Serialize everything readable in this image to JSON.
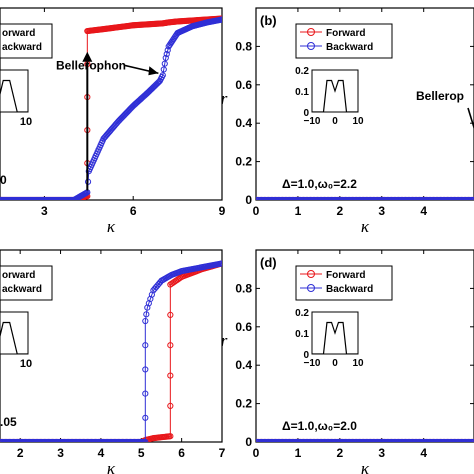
{
  "chart_data": [
    {
      "panel": "a",
      "type": "line",
      "xlabel": "κ",
      "ylabel": "",
      "panel_label": "",
      "xlim": [
        1.5,
        9
      ],
      "ylim": [
        0,
        1
      ],
      "x_ticks": [
        "3",
        "6",
        "9"
      ],
      "y_ticks": [],
      "series": [
        {
          "name": "Forward",
          "color": "#e8171b",
          "x": [
            1.5,
            2,
            3,
            4,
            4.45,
            4.45,
            5,
            5.5,
            6,
            6.5,
            7,
            7.2,
            7.5,
            8,
            8.5,
            9
          ],
          "y": [
            0,
            0,
            0,
            0,
            0.02,
            0.88,
            0.89,
            0.9,
            0.91,
            0.915,
            0.92,
            0.925,
            0.93,
            0.935,
            0.94,
            0.945
          ]
        },
        {
          "name": "Backward",
          "color": "#2f2fd6",
          "x": [
            1.5,
            2,
            3,
            4,
            4.45,
            4.5,
            5,
            5.5,
            6,
            6.5,
            6.9,
            7,
            7.1,
            7.2,
            7.5,
            8,
            8.5,
            9
          ],
          "y": [
            0,
            0,
            0,
            0,
            0.04,
            0.15,
            0.32,
            0.41,
            0.49,
            0.56,
            0.62,
            0.65,
            0.74,
            0.8,
            0.87,
            0.905,
            0.925,
            0.94
          ]
        }
      ],
      "legend": [
        "orward",
        "ackward"
      ],
      "annotation": "Bellerophon",
      "inset": {
        "x": [
          -10,
          -5,
          -1.5,
          1.5,
          5,
          10
        ],
        "y": [
          0,
          0,
          0.15,
          0.15,
          0,
          0
        ],
        "visible_tick": "10"
      },
      "param_text": "0"
    },
    {
      "panel": "b",
      "type": "line",
      "xlabel": "κ",
      "ylabel": "r",
      "panel_label": "(b)",
      "xlim": [
        0,
        5.2
      ],
      "ylim": [
        0,
        1
      ],
      "x_ticks": [
        "0",
        "1",
        "2",
        "3",
        "4"
      ],
      "y_ticks": [
        "0",
        "0.2",
        "0.4",
        "0.6",
        "0.8"
      ],
      "series": [
        {
          "name": "Forward",
          "color": "#e8171b",
          "x": [
            0,
            1,
            2,
            3,
            4,
            5.2
          ],
          "y": [
            0,
            0,
            0,
            0,
            0,
            0
          ]
        },
        {
          "name": "Backward",
          "color": "#2f2fd6",
          "x": [
            0,
            1,
            2,
            3,
            4,
            5.2
          ],
          "y": [
            0,
            0,
            0,
            0,
            0,
            0
          ]
        }
      ],
      "legend": [
        "Forward",
        "Backward"
      ],
      "annotation": "Bellerop",
      "inset": {
        "x": [
          -10,
          -5,
          -3.5,
          -1.5,
          0,
          1.5,
          3.5,
          5,
          10
        ],
        "y": [
          0,
          0,
          0.15,
          0.15,
          0.1,
          0.15,
          0.15,
          0,
          0
        ],
        "x_ticks": [
          "−10",
          "0",
          "10"
        ],
        "y_ticks": [
          "0",
          "0.1",
          "0.2"
        ]
      },
      "param_text": "Δ=1.0,ω₀=2.2"
    },
    {
      "panel": "c",
      "type": "line",
      "xlabel": "κ",
      "ylabel": "",
      "panel_label": "",
      "xlim": [
        1.5,
        7
      ],
      "ylim": [
        0,
        1
      ],
      "x_ticks": [
        "2",
        "3",
        "4",
        "5",
        "6",
        "7"
      ],
      "y_ticks": [],
      "series": [
        {
          "name": "Forward",
          "color": "#e8171b",
          "x": [
            1.5,
            2,
            3,
            4,
            5,
            5.1,
            5.3,
            5.5,
            5.72,
            5.72,
            6,
            6.5,
            7
          ],
          "y": [
            0,
            0,
            0,
            0,
            0,
            0.01,
            0.02,
            0.025,
            0.03,
            0.82,
            0.86,
            0.9,
            0.93
          ]
        },
        {
          "name": "Backward",
          "color": "#2f2fd6",
          "x": [
            1.5,
            2,
            3,
            4,
            5,
            5.1,
            5.1,
            5.15,
            5.3,
            5.5,
            5.75,
            6,
            6.5,
            7
          ],
          "y": [
            0,
            0,
            0,
            0,
            0,
            0,
            0.63,
            0.7,
            0.79,
            0.84,
            0.87,
            0.89,
            0.91,
            0.93
          ]
        }
      ],
      "legend": [
        "orward",
        "ackward"
      ],
      "inset": {
        "x": [
          -10,
          -5,
          -1.5,
          1.5,
          5,
          10
        ],
        "y": [
          0,
          0,
          0.15,
          0.15,
          0,
          0
        ],
        "visible_tick": "10"
      },
      "param_text": ".05"
    },
    {
      "panel": "d",
      "type": "line",
      "xlabel": "κ",
      "ylabel": "r",
      "panel_label": "(d)",
      "xlim": [
        0,
        5.2
      ],
      "ylim": [
        0,
        1
      ],
      "x_ticks": [
        "0",
        "1",
        "2",
        "3",
        "4"
      ],
      "y_ticks": [
        "0",
        "0.2",
        "0.4",
        "0.6",
        "0.8"
      ],
      "series": [
        {
          "name": "Forward",
          "color": "#e8171b",
          "x": [
            0,
            1,
            2,
            3,
            4,
            5.2
          ],
          "y": [
            0,
            0,
            0,
            0,
            0,
            0
          ]
        },
        {
          "name": "Backward",
          "color": "#2f2fd6",
          "x": [
            0,
            1,
            2,
            3,
            4,
            5.2
          ],
          "y": [
            0,
            0,
            0,
            0,
            0,
            0
          ]
        }
      ],
      "legend": [
        "Forward",
        "Backward"
      ],
      "inset": {
        "x": [
          -10,
          -5,
          -3.5,
          -1.5,
          0,
          1.5,
          3.5,
          5,
          10
        ],
        "y": [
          0,
          0,
          0.15,
          0.15,
          0.1,
          0.15,
          0.15,
          0,
          0
        ],
        "x_ticks": [
          "−10",
          "0",
          "10"
        ],
        "y_ticks": [
          "0",
          "0.1",
          "0.2"
        ]
      },
      "param_text": "Δ=1.0,ω₀=2.0"
    }
  ]
}
